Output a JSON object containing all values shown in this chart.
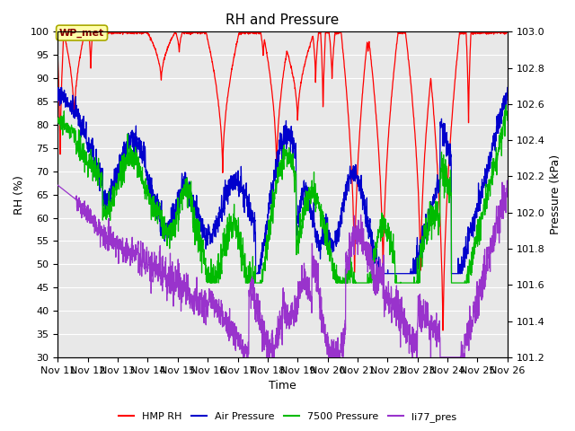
{
  "title": "RH and Pressure",
  "xlabel": "Time",
  "ylabel_left": "RH (%)",
  "ylabel_right": "Pressure (kPa)",
  "ylim_left": [
    30,
    100
  ],
  "ylim_right": [
    101.2,
    103.0
  ],
  "x_ticks": [
    11,
    12,
    13,
    14,
    15,
    16,
    17,
    18,
    19,
    20,
    21,
    22,
    23,
    24,
    25,
    26
  ],
  "x_tick_labels": [
    "Nov 11",
    "Nov 12",
    "Nov 13",
    "Nov 14",
    "Nov 15",
    "Nov 16",
    "Nov 17",
    "Nov 18",
    "Nov 19",
    "Nov 20",
    "Nov 21",
    "Nov 22",
    "Nov 23",
    "Nov 24",
    "Nov 25",
    "Nov 26"
  ],
  "colors": {
    "hmp_rh": "#FF0000",
    "air_pressure": "#0000CC",
    "pressure_7500": "#00BB00",
    "li77_pres": "#9933CC"
  },
  "legend_labels": [
    "HMP RH",
    "Air Pressure",
    "7500 Pressure",
    "li77_pres"
  ],
  "annotation_text": "WP_met",
  "background_color": "#FFFFFF",
  "plot_bg_color": "#E8E8E8",
  "grid_color": "#FFFFFF",
  "title_fontsize": 11,
  "axis_fontsize": 9,
  "tick_fontsize": 8
}
